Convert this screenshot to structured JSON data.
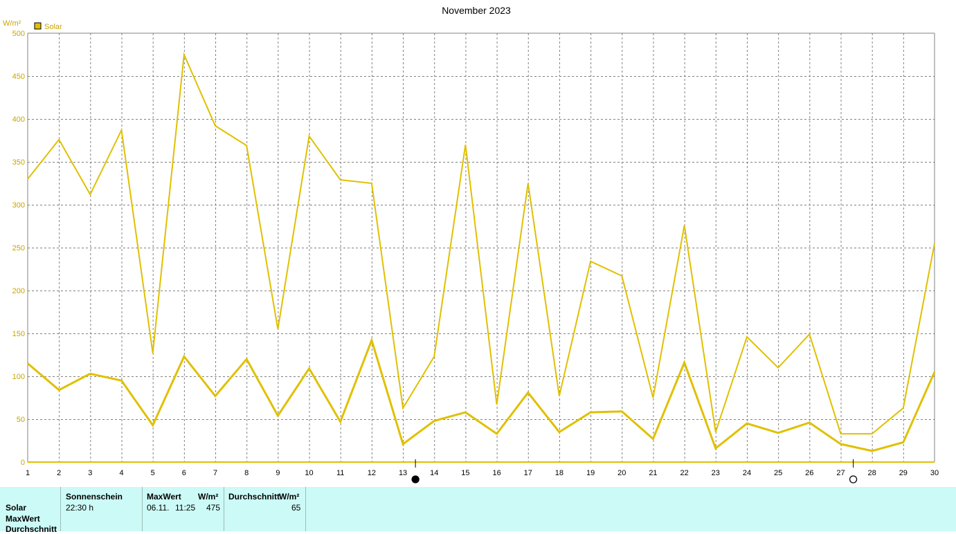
{
  "chart_data": {
    "type": "line",
    "title": "November 2023",
    "ylabel": "W/m²",
    "ylim": [
      0,
      500
    ],
    "yticks": [
      0,
      50,
      100,
      150,
      200,
      250,
      300,
      350,
      400,
      450,
      500
    ],
    "x": [
      1,
      2,
      3,
      4,
      5,
      6,
      7,
      8,
      9,
      10,
      11,
      12,
      13,
      14,
      15,
      16,
      17,
      18,
      19,
      20,
      21,
      22,
      23,
      24,
      25,
      26,
      27,
      28,
      29,
      30
    ],
    "legend": {
      "label": "Solar",
      "color": "#e0c000",
      "placement": "top-left"
    },
    "series": [
      {
        "name": "Solar",
        "role": "max",
        "values": [
          330,
          376,
          312,
          387,
          127,
          475,
          392,
          369,
          155,
          380,
          329,
          325,
          63,
          123,
          370,
          67,
          325,
          77,
          234,
          217,
          75,
          276,
          35,
          146,
          110,
          149,
          33,
          33,
          63,
          255
        ]
      },
      {
        "name": "Solar",
        "role": "average",
        "values": [
          115,
          84,
          103,
          95,
          43,
          123,
          77,
          120,
          54,
          109,
          47,
          142,
          21,
          48,
          58,
          33,
          81,
          35,
          58,
          59,
          27,
          116,
          16,
          45,
          34,
          46,
          21,
          13,
          23,
          105
        ]
      }
    ],
    "moon_phases": [
      {
        "phase": "new-moon",
        "day": 13.4
      },
      {
        "phase": "full-moon",
        "day": 27.4
      }
    ],
    "colors": {
      "line": "#e0c000",
      "axis_text": "#c8a400",
      "grid": "#808080"
    }
  },
  "table": {
    "row_labels": [
      "Solar",
      "MaxWert",
      "Durchschnitt"
    ],
    "sunshine": {
      "header": "Sonnenschein",
      "value": "22:30 h"
    },
    "max": {
      "header": "MaxWert",
      "unit": "W/m²",
      "date": "06.11.",
      "time": "11:25",
      "value": "475"
    },
    "avg": {
      "header": "Durchschnitt",
      "unit": "W/m²",
      "value": "65"
    }
  }
}
